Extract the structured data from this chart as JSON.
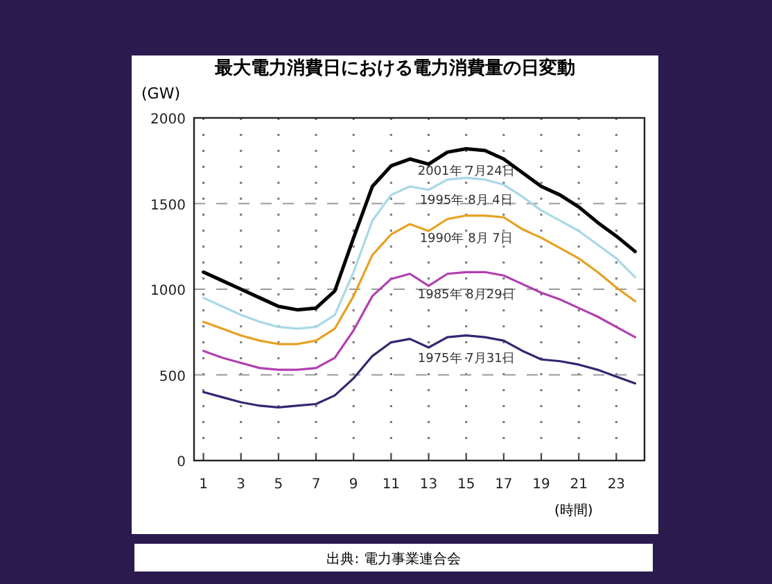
{
  "chart_data": {
    "type": "line",
    "title": "最大電力消費日における電力消費量の日変動",
    "ylabel": "(GW)",
    "xlabel": "(時間)",
    "annotations": [
      "出典: 電力事業連合会"
    ],
    "x": [
      1,
      2,
      3,
      4,
      5,
      6,
      7,
      8,
      9,
      10,
      11,
      12,
      13,
      14,
      15,
      16,
      17,
      18,
      19,
      20,
      21,
      22,
      23,
      24
    ],
    "xlim": [
      0.5,
      24.5
    ],
    "xticks": [
      1,
      3,
      5,
      7,
      9,
      11,
      13,
      15,
      17,
      19,
      21,
      23
    ],
    "ylim": [
      0,
      2000
    ],
    "yticks": [
      0,
      500,
      1000,
      1500,
      2000
    ],
    "grid": true,
    "marker": "none",
    "line_style": "solid",
    "series": [
      {
        "name": "2001年 7月24日",
        "color": "#000000",
        "values": [
          1100,
          1050,
          1000,
          950,
          900,
          880,
          890,
          990,
          1300,
          1600,
          1720,
          1760,
          1730,
          1800,
          1820,
          1810,
          1760,
          1680,
          1600,
          1550,
          1480,
          1390,
          1310,
          1220
        ]
      },
      {
        "name": "1995年 8月 4日",
        "color": "#a8d8e8",
        "values": [
          950,
          900,
          850,
          810,
          780,
          770,
          780,
          850,
          1100,
          1400,
          1550,
          1600,
          1580,
          1640,
          1650,
          1640,
          1610,
          1540,
          1460,
          1400,
          1340,
          1260,
          1180,
          1070
        ]
      },
      {
        "name": "1990年 8月 7日",
        "color": "#e8a020",
        "values": [
          810,
          770,
          730,
          700,
          680,
          680,
          700,
          770,
          960,
          1200,
          1320,
          1380,
          1340,
          1410,
          1430,
          1430,
          1420,
          1350,
          1300,
          1240,
          1180,
          1100,
          1010,
          930
        ]
      },
      {
        "name": "1985年 8月29日",
        "color": "#b040b0",
        "values": [
          640,
          600,
          570,
          540,
          530,
          530,
          540,
          600,
          760,
          960,
          1060,
          1090,
          1020,
          1090,
          1100,
          1100,
          1080,
          1030,
          980,
          940,
          890,
          840,
          780,
          720
        ]
      },
      {
        "name": "1975年 7月31日",
        "color": "#302870",
        "values": [
          400,
          370,
          340,
          320,
          310,
          320,
          330,
          380,
          480,
          610,
          690,
          710,
          660,
          720,
          730,
          720,
          700,
          640,
          590,
          580,
          560,
          530,
          490,
          450
        ]
      }
    ]
  }
}
